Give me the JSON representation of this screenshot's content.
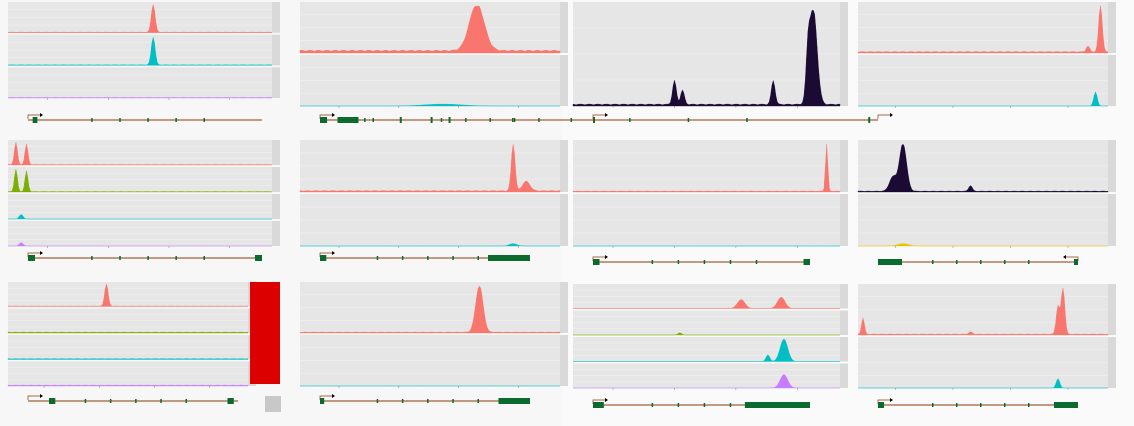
{
  "chart_data": [
    {
      "type": "area",
      "tracks": [
        {
          "color": "#f8766d",
          "peaks": [
            [
              0.55,
              1.0,
              0.01
            ]
          ],
          "base": 0.02
        },
        {
          "color": "#00bfc4",
          "peaks": [
            [
              0.55,
              1.0,
              0.01
            ]
          ],
          "base": 0.02
        },
        {
          "color": "#c77cff",
          "peaks": [],
          "base": 0.02
        }
      ],
      "gene": {
        "exons": [
          [
            0.02,
            0.04
          ]
        ],
        "strand": "+"
      }
    },
    {
      "type": "area",
      "tracks": [
        {
          "color": "#f8766d",
          "peaks": [
            [
              0.68,
              1.0,
              0.04
            ]
          ],
          "base": 0.06
        },
        {
          "color": "#00bfc4",
          "peaks": [
            [
              0.55,
              0.04,
              0.1
            ]
          ],
          "base": 0.0
        }
      ],
      "gene": {
        "exons": [
          [
            0.0,
            0.1
          ],
          [
            0.25,
            0.55
          ]
        ],
        "strand": "+"
      }
    },
    {
      "type": "area",
      "tracks": [
        {
          "color": "#1b0a33",
          "peaks": [
            [
              0.38,
              0.25,
              0.01
            ],
            [
              0.41,
              0.15,
              0.01
            ],
            [
              0.75,
              0.25,
              0.01
            ],
            [
              0.9,
              1.0,
              0.02
            ],
            [
              0.88,
              0.4,
              0.01
            ]
          ],
          "base": 0.02
        }
      ],
      "gene": {
        "exons": [
          [
            0.0,
            0.03
          ],
          [
            0.8,
            1.0
          ]
        ],
        "strand": "+"
      }
    },
    {
      "type": "area",
      "tracks": [
        {
          "color": "#f8766d",
          "peaks": [
            [
              0.97,
              1.0,
              0.01
            ],
            [
              0.92,
              0.12,
              0.01
            ]
          ],
          "base": 0.03
        },
        {
          "color": "#00bfc4",
          "peaks": [
            [
              0.95,
              0.3,
              0.01
            ]
          ],
          "base": 0.0
        }
      ],
      "gene": {
        "exons": [
          [
            0.02,
            0.04
          ],
          [
            0.88,
            0.96
          ],
          [
            0.98,
            1.0
          ]
        ],
        "strand": "+"
      }
    },
    {
      "type": "area",
      "tracks": [
        {
          "color": "#f8766d",
          "peaks": [
            [
              0.03,
              1.0,
              0.008
            ],
            [
              0.07,
              0.9,
              0.008
            ]
          ],
          "base": 0.02
        },
        {
          "color": "#7cae00",
          "peaks": [
            [
              0.03,
              1.0,
              0.008
            ],
            [
              0.07,
              0.9,
              0.008
            ]
          ],
          "base": 0.02
        },
        {
          "color": "#00bfc4",
          "peaks": [
            [
              0.05,
              0.2,
              0.01
            ]
          ],
          "base": 0.0
        },
        {
          "color": "#c77cff",
          "peaks": [
            [
              0.05,
              0.15,
              0.01
            ]
          ],
          "base": 0.0
        }
      ],
      "gene": {
        "exons": [
          [
            0.0,
            0.03
          ],
          [
            0.97,
            1.0
          ]
        ],
        "strand": "+"
      }
    },
    {
      "type": "area",
      "tracks": [
        {
          "color": "#f8766d",
          "peaks": [
            [
              0.82,
              1.0,
              0.01
            ],
            [
              0.87,
              0.2,
              0.02
            ]
          ],
          "base": 0.03
        },
        {
          "color": "#00bfc4",
          "peaks": [
            [
              0.82,
              0.05,
              0.02
            ]
          ],
          "base": 0.0
        }
      ],
      "gene": {
        "exons": [
          [
            0.0,
            0.03
          ],
          [
            0.8,
            1.0
          ]
        ],
        "strand": "+"
      }
    },
    {
      "type": "area",
      "tracks": [
        {
          "color": "#f8766d",
          "peaks": [
            [
              0.95,
              1.0,
              0.006
            ]
          ],
          "base": 0.02
        },
        {
          "color": "#00bfc4",
          "peaks": [],
          "base": 0.0
        }
      ],
      "gene": {
        "exons": [
          [
            0.0,
            0.03
          ],
          [
            0.97,
            1.0
          ]
        ],
        "strand": "+"
      }
    },
    {
      "type": "area",
      "tracks": [
        {
          "color": "#1b0a33",
          "peaks": [
            [
              0.18,
              1.0,
              0.02
            ],
            [
              0.14,
              0.3,
              0.02
            ],
            [
              0.45,
              0.12,
              0.01
            ]
          ],
          "base": 0.02
        },
        {
          "color": "#e3c600",
          "peaks": [
            [
              0.18,
              0.05,
              0.03
            ]
          ],
          "base": 0.0
        }
      ],
      "gene": {
        "exons": [
          [
            0.0,
            0.12
          ],
          [
            0.98,
            1.0
          ]
        ],
        "strand": "-"
      }
    },
    {
      "type": "area",
      "tracks": [
        {
          "color": "#f8766d",
          "peaks": [
            [
              0.41,
              1.0,
              0.01
            ]
          ],
          "base": 0.02
        },
        {
          "color": "#7cae00",
          "peaks": [],
          "base": 0.04
        },
        {
          "color": "#00bfc4",
          "peaks": [],
          "base": 0.04
        },
        {
          "color": "#c77cff",
          "peaks": [],
          "base": 0.04
        }
      ],
      "gene": {
        "exons": [
          [
            0.1,
            0.13
          ],
          [
            0.95,
            0.98
          ]
        ],
        "strand": "+"
      }
    },
    {
      "type": "area",
      "tracks": [
        {
          "color": "#f8766d",
          "peaks": [
            [
              0.69,
              1.0,
              0.02
            ]
          ],
          "base": 0.02
        },
        {
          "color": "#00bfc4",
          "peaks": [],
          "base": 0.0
        }
      ],
      "gene": {
        "exons": [
          [
            0.0,
            0.02
          ],
          [
            0.85,
            1.0
          ]
        ],
        "strand": "+"
      }
    },
    {
      "type": "area",
      "tracks": [
        {
          "color": "#f8766d",
          "peaks": [
            [
              0.63,
              0.4,
              0.02
            ],
            [
              0.78,
              0.5,
              0.02
            ]
          ],
          "base": 0.0
        },
        {
          "color": "#7cae00",
          "peaks": [
            [
              0.4,
              0.1,
              0.01
            ]
          ],
          "base": 0.0
        },
        {
          "color": "#00bfc4",
          "peaks": [
            [
              0.73,
              0.3,
              0.01
            ],
            [
              0.79,
              1.0,
              0.02
            ]
          ],
          "base": 0.0
        },
        {
          "color": "#c77cff",
          "peaks": [
            [
              0.79,
              0.6,
              0.02
            ]
          ],
          "base": 0.0
        }
      ],
      "gene": {
        "exons": [
          [
            0.0,
            0.05
          ],
          [
            0.7,
            1.0
          ]
        ],
        "strand": "+"
      }
    },
    {
      "type": "area",
      "tracks": [
        {
          "color": "#f8766d",
          "peaks": [
            [
              0.02,
              0.35,
              0.008
            ],
            [
              0.82,
              1.0,
              0.01
            ],
            [
              0.8,
              0.6,
              0.01
            ],
            [
              0.45,
              0.05,
              0.01
            ]
          ],
          "base": 0.02
        },
        {
          "color": "#00bfc4",
          "peaks": [
            [
              0.8,
              0.2,
              0.01
            ]
          ],
          "base": 0.0
        }
      ],
      "gene": {
        "exons": [
          [
            0.0,
            0.03
          ],
          [
            0.88,
            1.0
          ]
        ],
        "strand": "+"
      }
    }
  ]
}
